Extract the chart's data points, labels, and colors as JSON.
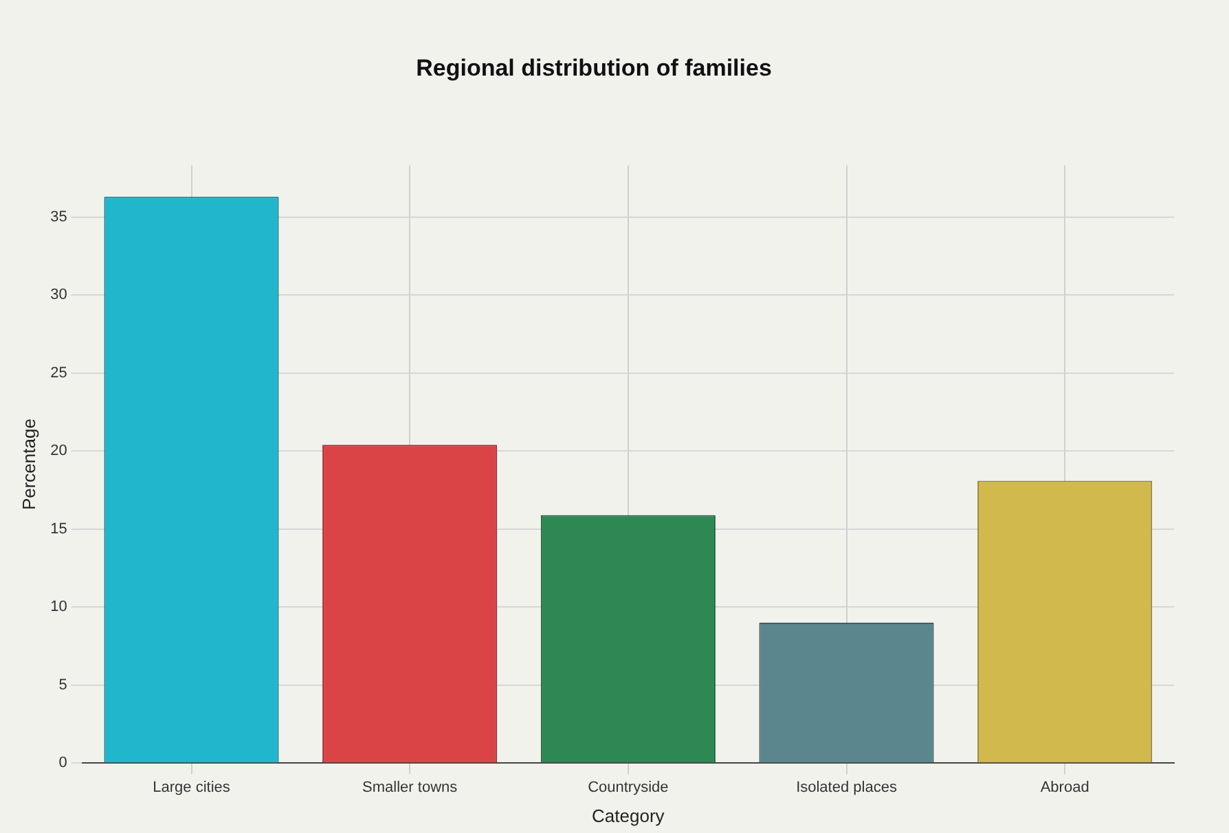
{
  "chart_data": {
    "type": "bar",
    "title": "Regional distribution of families",
    "xlabel": "Category",
    "ylabel": "Percentage",
    "categories": [
      "Large cities",
      "Smaller towns",
      "Countryside",
      "Isolated places",
      "Abroad"
    ],
    "values": [
      36.3,
      20.4,
      15.9,
      9.0,
      18.1
    ],
    "colors": [
      "#20b6cb",
      "#db4446",
      "#2d8854",
      "#5b868d",
      "#d2b94d"
    ],
    "ylim": [
      0,
      38.3
    ],
    "yticks": [
      0,
      5,
      10,
      15,
      20,
      25,
      30,
      35
    ],
    "grid": true
  }
}
